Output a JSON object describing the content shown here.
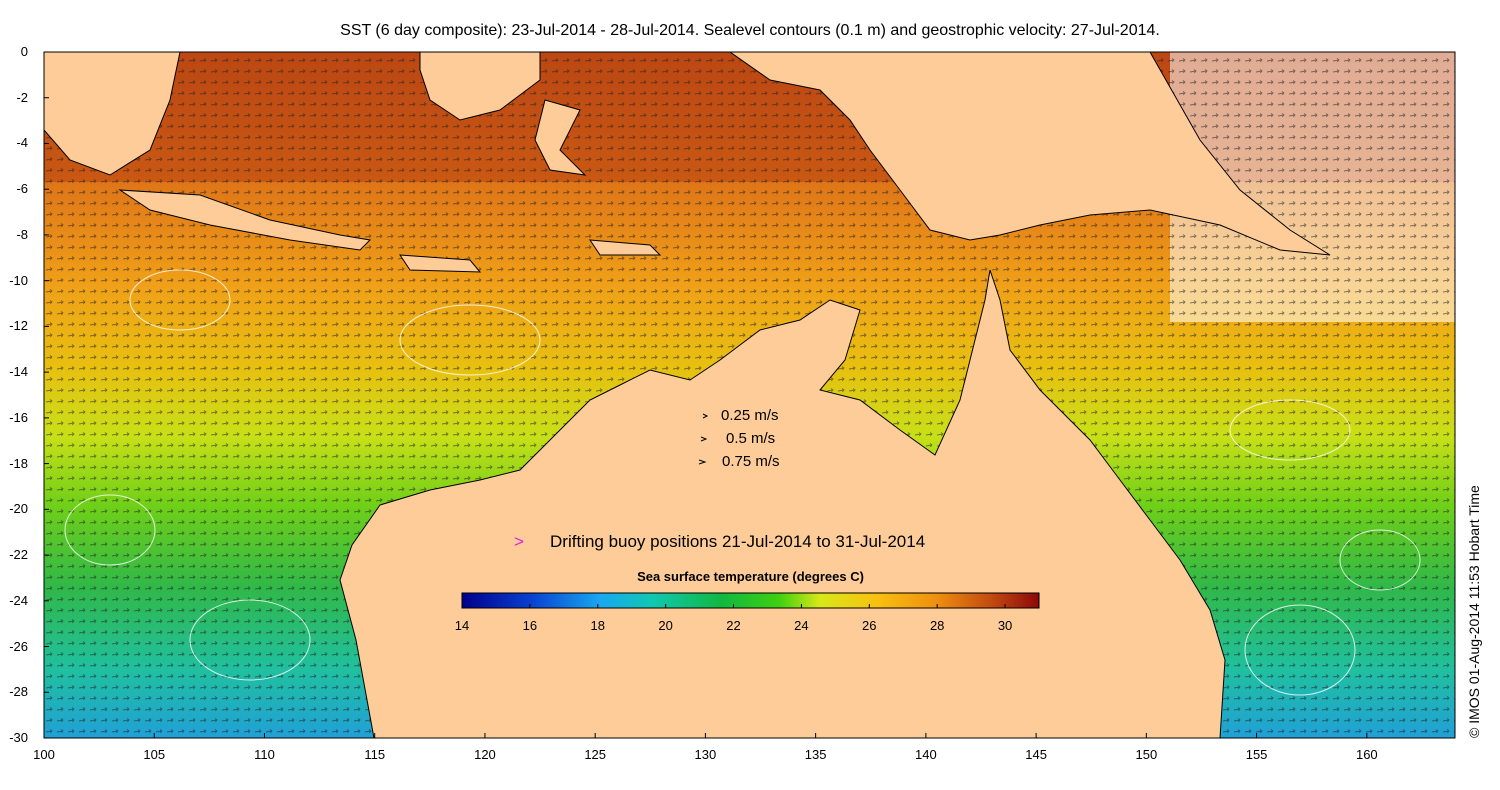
{
  "title": "SST (6 day composite): 23-Jul-2014 - 28-Jul-2014. Sealevel contours (0.1 m) and geostrophic velocity: 27-Jul-2014.",
  "credit": "© IMOS 01-Aug-2014 11:53 Hobart Time",
  "axes": {
    "x_ticks": [
      "100",
      "105",
      "110",
      "115",
      "120",
      "125",
      "130",
      "135",
      "140",
      "145",
      "150",
      "155",
      "160"
    ],
    "y_ticks": [
      "0",
      "-2",
      "-4",
      "-6",
      "-8",
      "-10",
      "-12",
      "-14",
      "-16",
      "-18",
      "-20",
      "-22",
      "-24",
      "-26",
      "-28",
      "-30"
    ],
    "x_range": [
      100,
      164
    ],
    "y_range": [
      -30,
      0
    ]
  },
  "velocity_legend": [
    {
      "label": "0.25 m/s",
      "speed": 0.25
    },
    {
      "label": "0.5 m/s",
      "speed": 0.5
    },
    {
      "label": "0.75 m/s",
      "speed": 0.75
    }
  ],
  "buoy_legend": {
    "marker": ">",
    "label": "Drifting buoy positions 21-Jul-2014 to 31-Jul-2014",
    "color": "#e020e0"
  },
  "colorbar": {
    "title": "Sea surface temperature (degrees C)",
    "range": [
      14,
      31
    ],
    "ticks": [
      "14",
      "16",
      "18",
      "20",
      "22",
      "24",
      "26",
      "28",
      "30"
    ]
  },
  "colors": {
    "land": "#fdcc99",
    "coast": "#000000",
    "contour": "#ffffff"
  }
}
